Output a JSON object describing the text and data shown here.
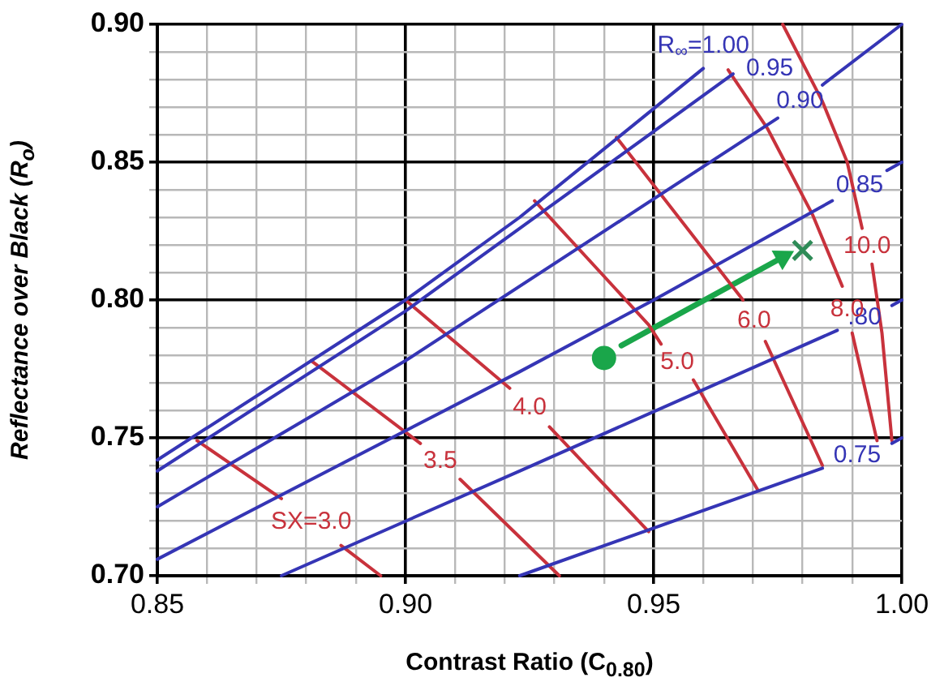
{
  "chart_data": {
    "type": "line",
    "xlabel": "Contrast Ratio (C$_{0.80}$)",
    "ylabel": "Reflectance over Black (R$_{o}$)",
    "xlim": [
      0.85,
      1.0
    ],
    "ylim": [
      0.7,
      0.9
    ],
    "xticks": [
      {
        "value": 0.85,
        "label": "0.85"
      },
      {
        "value": 0.86,
        "label": null
      },
      {
        "value": 0.87,
        "label": null
      },
      {
        "value": 0.88,
        "label": null
      },
      {
        "value": 0.89,
        "label": null
      },
      {
        "value": 0.9,
        "label": "0.90"
      },
      {
        "value": 0.91,
        "label": null
      },
      {
        "value": 0.92,
        "label": null
      },
      {
        "value": 0.93,
        "label": null
      },
      {
        "value": 0.94,
        "label": null
      },
      {
        "value": 0.95,
        "label": "0.95"
      },
      {
        "value": 0.96,
        "label": null
      },
      {
        "value": 0.97,
        "label": null
      },
      {
        "value": 0.98,
        "label": null
      },
      {
        "value": 0.99,
        "label": null
      },
      {
        "value": 1.0,
        "label": "1.00"
      }
    ],
    "yticks": [
      {
        "value": 0.7,
        "label": "0.70"
      },
      {
        "value": 0.71,
        "label": null
      },
      {
        "value": 0.72,
        "label": null
      },
      {
        "value": 0.73,
        "label": null
      },
      {
        "value": 0.74,
        "label": null
      },
      {
        "value": 0.75,
        "label": "0.75"
      },
      {
        "value": 0.76,
        "label": null
      },
      {
        "value": 0.77,
        "label": null
      },
      {
        "value": 0.78,
        "label": null
      },
      {
        "value": 0.79,
        "label": null
      },
      {
        "value": 0.8,
        "label": "0.80"
      },
      {
        "value": 0.81,
        "label": null
      },
      {
        "value": 0.82,
        "label": null
      },
      {
        "value": 0.83,
        "label": null
      },
      {
        "value": 0.84,
        "label": null
      },
      {
        "value": 0.85,
        "label": "0.85"
      },
      {
        "value": 0.86,
        "label": null
      },
      {
        "value": 0.87,
        "label": null
      },
      {
        "value": 0.88,
        "label": null
      },
      {
        "value": 0.89,
        "label": null
      },
      {
        "value": 0.9,
        "label": "0.90"
      }
    ],
    "grid": true,
    "legend": false,
    "marker": "none",
    "line_style": "solid",
    "series": [
      {
        "name": "R$_{∞}$=1.00",
        "type": "line",
        "color": "#3535b5",
        "x": [
          0.85,
          0.9,
          0.923,
          0.96
        ],
        "values": [
          0.742,
          0.8,
          0.83,
          0.884
        ]
      },
      {
        "name": "0.95",
        "type": "line",
        "color": "#3535b5",
        "x": [
          0.85,
          0.9,
          0.966
        ],
        "values": [
          0.738,
          0.796,
          0.882
        ]
      },
      {
        "name": "0.90",
        "type": "line",
        "color": "#3535b5",
        "x": [
          0.85,
          0.9,
          0.975,
          0.9795,
          0.984,
          1.0
        ],
        "values": [
          0.725,
          0.778,
          0.866,
          null,
          0.878,
          0.9
        ]
      },
      {
        "name": "0.85",
        "type": "line",
        "color": "#3535b5",
        "x": [
          0.85,
          0.923,
          0.95,
          0.986,
          0.992,
          0.997,
          1.0
        ],
        "values": [
          0.706,
          0.774,
          0.8,
          0.836,
          null,
          0.847,
          0.85
        ]
      },
      {
        "name": ".80",
        "type": "line",
        "color": "#3535b5",
        "x": [
          0.875,
          0.923,
          0.987,
          0.9925,
          0.998,
          1.0
        ],
        "values": [
          0.7,
          0.738,
          0.789,
          null,
          0.798,
          0.8
        ]
      },
      {
        "name": "0.75",
        "type": "line",
        "color": "#3535b5",
        "x": [
          0.923,
          0.984,
          0.991,
          0.998,
          1.0
        ],
        "values": [
          0.7,
          0.739,
          null,
          0.748,
          0.75
        ]
      },
      {
        "name": "SX=3.0",
        "type": "line",
        "color": "#c8323c",
        "x": [
          0.858,
          0.875,
          0.881,
          0.887,
          0.895
        ],
        "values": [
          0.749,
          0.728,
          null,
          0.711,
          0.7
        ]
      },
      {
        "name": "3.5",
        "type": "line",
        "color": "#c8323c",
        "x": [
          0.881,
          0.903,
          0.907,
          0.911,
          0.931
        ],
        "values": [
          0.778,
          0.748,
          null,
          0.735,
          0.7
        ]
      },
      {
        "name": "4.0",
        "type": "line",
        "color": "#c8323c",
        "x": [
          0.9,
          0.921,
          0.925,
          0.929,
          0.949
        ],
        "values": [
          0.8,
          0.768,
          null,
          0.754,
          0.716
        ]
      },
      {
        "name": "5.0",
        "type": "line",
        "color": "#c8323c",
        "x": [
          0.926,
          0.949,
          0.9515,
          0.955,
          0.958,
          0.971
        ],
        "values": [
          0.836,
          0.791,
          0.784,
          null,
          0.771,
          0.731
        ]
      },
      {
        "name": "6.0",
        "type": "line",
        "color": "#c8323c",
        "x": [
          0.9425,
          0.968,
          0.97,
          0.9725,
          0.984
        ],
        "values": [
          0.859,
          0.8,
          null,
          0.785,
          0.74
        ]
      },
      {
        "name": "8.0",
        "type": "line",
        "color": "#c8323c",
        "x": [
          0.965,
          0.973,
          0.982,
          0.988,
          0.989,
          0.99,
          0.995
        ],
        "values": [
          0.8835,
          0.862,
          0.831,
          0.805,
          null,
          0.788,
          0.749
        ]
      },
      {
        "name": "10.0",
        "type": "line",
        "color": "#c8323c",
        "x": [
          0.976,
          0.984,
          0.989,
          0.992,
          0.993,
          0.994,
          0.996,
          0.998
        ],
        "values": [
          0.9,
          0.872,
          0.85,
          0.826,
          null,
          0.813,
          0.788,
          0.749
        ]
      },
      {
        "type": "line",
        "marker": "triangle",
        "color": "#1aa64a",
        "x": [
          0.9435,
          0.976
        ],
        "values": [
          0.7835,
          0.8155
        ]
      },
      {
        "type": "scatter",
        "marker": "circle",
        "color": "#1aa64a",
        "x": [
          0.94
        ],
        "values": [
          0.779
        ]
      },
      {
        "type": "scatter",
        "marker": "cross",
        "color": "#2e8b57",
        "x": [
          0.98
        ],
        "values": [
          0.818
        ]
      }
    ]
  }
}
